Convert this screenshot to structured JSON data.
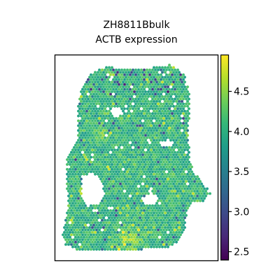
{
  "chart_data": {
    "type": "scatter",
    "subtype": "spatial-spot-map",
    "title": [
      "ZH8811Bbulk",
      "ACTB expression"
    ],
    "xlabel": "",
    "ylabel": "",
    "axis_ticks_shown": false,
    "spot_shape": "hexagon",
    "colormap": "viridis",
    "colorbar": {
      "position": "right",
      "range": [
        2.4,
        4.95
      ],
      "ticks": [
        2.5,
        3.0,
        3.5,
        4.0,
        4.5
      ],
      "tick_labels": [
        "2.5",
        "3.0",
        "3.5",
        "4.0",
        "4.5"
      ]
    },
    "value_summary": {
      "typical": 4.1,
      "min": 2.6,
      "max": 4.9
    },
    "regions": [
      {
        "name": "high expression",
        "values": [
          4.6,
          4.9
        ],
        "where": "lower middle"
      },
      {
        "name": "moderate expression",
        "values": [
          3.7,
          4.4
        ],
        "where": "bulk of tissue"
      },
      {
        "name": "low expression",
        "values": [
          2.7,
          3.4
        ],
        "where": "scattered, top edge"
      }
    ]
  },
  "colors": {
    "viridis": [
      "#440154",
      "#482878",
      "#3e4989",
      "#31688e",
      "#26828e",
      "#1f9e89",
      "#35b779",
      "#6ece58",
      "#b5de2b",
      "#fde725"
    ],
    "frame": "#000000",
    "background": "#ffffff"
  }
}
